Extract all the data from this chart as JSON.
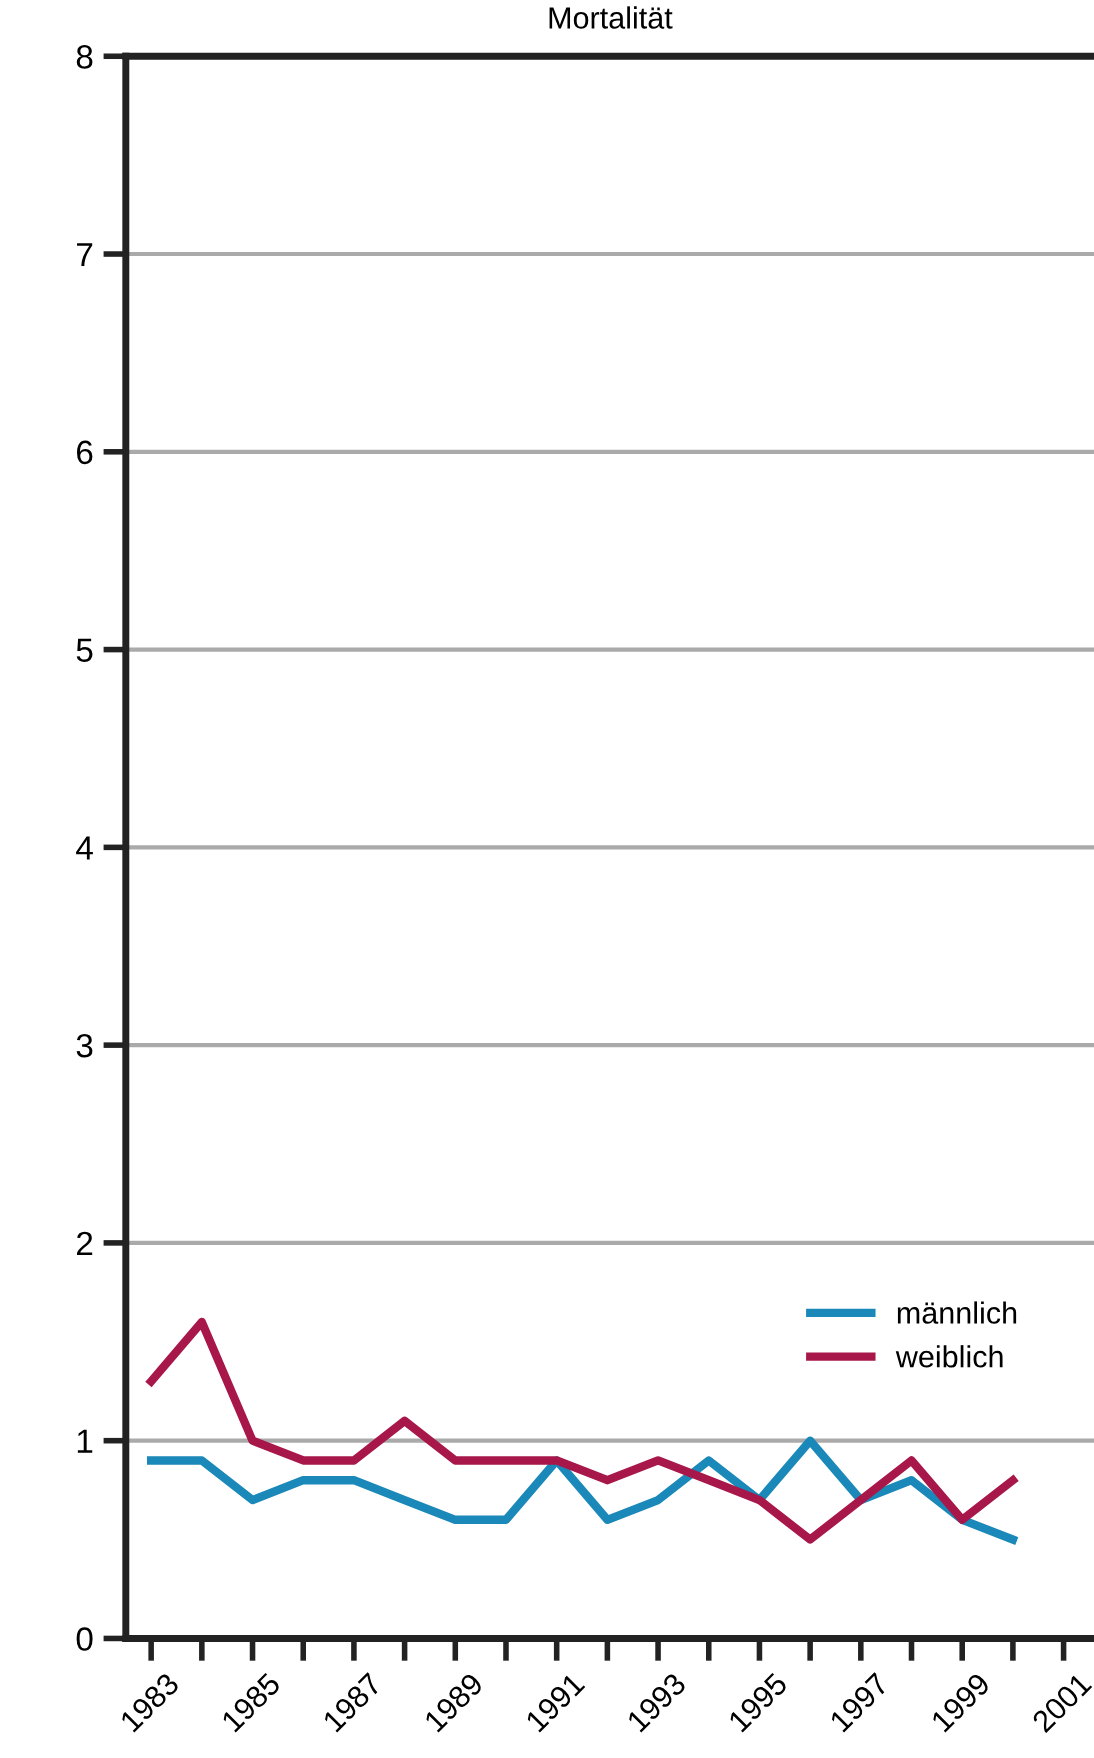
{
  "chart_data": {
    "type": "line",
    "title": "Mortalität",
    "x": [
      1983,
      1984,
      1985,
      1986,
      1987,
      1988,
      1989,
      1990,
      1991,
      1992,
      1993,
      1994,
      1995,
      1996,
      1997,
      1998,
      1999,
      2000
    ],
    "series": [
      {
        "name": "männlich",
        "color": "#1a88b8",
        "values": [
          0.9,
          0.9,
          0.7,
          0.8,
          0.8,
          0.7,
          0.6,
          0.6,
          0.9,
          0.6,
          0.7,
          0.9,
          0.7,
          1.0,
          0.7,
          0.8,
          0.6,
          0.5
        ]
      },
      {
        "name": "weiblich",
        "color": "#a8174a",
        "values": [
          1.3,
          1.6,
          1.0,
          0.9,
          0.9,
          1.1,
          0.9,
          0.9,
          0.9,
          0.8,
          0.9,
          0.8,
          0.7,
          0.5,
          0.7,
          0.9,
          0.6,
          0.8
        ]
      }
    ],
    "xlim": [
      1982.5,
      2001.6
    ],
    "xticks": [
      1983,
      {
        "value": 1984,
        "label": null
      },
      1985,
      {
        "value": 1986,
        "label": null
      },
      1987,
      {
        "value": 1988,
        "label": null
      },
      1989,
      {
        "value": 1990,
        "label": null
      },
      1991,
      {
        "value": 1992,
        "label": null
      },
      1993,
      {
        "value": 1994,
        "label": null
      },
      1995,
      {
        "value": 1996,
        "label": null
      },
      1997,
      {
        "value": 1998,
        "label": null
      },
      1999,
      {
        "value": 2000,
        "label": null
      },
      2001
    ],
    "ylim": [
      0,
      8
    ],
    "yticks": [
      0,
      1,
      2,
      3,
      4,
      5,
      6,
      7,
      8
    ],
    "grid": "y",
    "legend": "lower right",
    "line_style": "solid"
  }
}
